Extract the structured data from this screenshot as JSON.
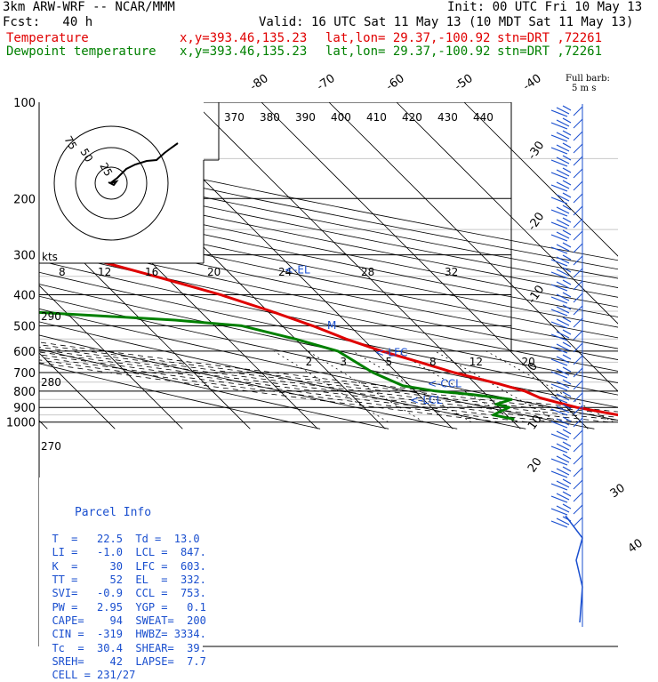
{
  "header": {
    "model": "3km ARW-WRF -- NCAR/MMM",
    "init": "Init: 00 UTC Fri 10 May 13",
    "fcst": "Fcst:   40 h",
    "valid": "Valid: 16 UTC Sat 11 May 13 (10 MDT Sat 11 May 13)",
    "temp_label": "Temperature",
    "dew_label": "Dewpoint temperature",
    "xy": "x,y=393.46,135.23",
    "latlon": "lat,lon= 29.37,-100.92",
    "stn": "stn=DRT ,72261"
  },
  "barb_legend": {
    "line1": "Full barb:",
    "line2": "5 m s"
  },
  "parcel": {
    "title": "Parcel Info",
    "rows": [
      "T  =   22.5  Td =  13.0",
      "LI =   -1.0  LCL =  847.",
      "K  =     30  LFC =  603.",
      "TT =     52  EL  =  332.",
      "SVI=   -0.9  CCL =  753.",
      "PW =   2.95  YGP =   0.1",
      "CAPE=    94  SWEAT=  200",
      "CIN =  -319  HWBZ= 3334.",
      "Tc  =  30.4  SHEAR=  39.",
      "SREH=    42  LAPSE=  7.7",
      "CELL = 231/27"
    ]
  },
  "chart_data": {
    "type": "line",
    "subtype": "skew-T log-p sounding",
    "pressure_ticks": [
      "100",
      "200",
      "300",
      "400",
      "500",
      "600",
      "700",
      "800",
      "900",
      "1000"
    ],
    "isotherm_labels": [
      "-80",
      "-70",
      "-60",
      "-50",
      "-40",
      "-30",
      "-20",
      "-10",
      "0",
      "10",
      "20",
      "30",
      "40"
    ],
    "theta_labels": [
      "370",
      "380",
      "390",
      "400",
      "410",
      "420",
      "430",
      "440",
      "290",
      "280",
      "270"
    ],
    "mixing_ratio_labels": [
      "2",
      "3",
      "5",
      "8",
      "12",
      "20"
    ],
    "hodo_ring_labels": [
      "75",
      "50",
      "25"
    ],
    "hodo_speed_labels": [
      "kts",
      "8",
      "12",
      "16",
      "20",
      "24",
      "28",
      "32"
    ],
    "levels": [
      {
        "name": "<-EL",
        "p": 332
      },
      {
        "name": "<-LFC",
        "p": 603
      },
      {
        "name": "<-CCL",
        "p": 753
      },
      {
        "name": "<-LCL",
        "p": 847
      }
    ],
    "freezing_marker": {
      "label": "M",
      "p": 496
    },
    "series": [
      {
        "name": "Temperature",
        "color": "#e00000",
        "points": [
          [
            980,
            30.5
          ],
          [
            950,
            26.5
          ],
          [
            900,
            21.5
          ],
          [
            870,
            19.5
          ],
          [
            840,
            17.5
          ],
          [
            800,
            16.2
          ],
          [
            760,
            13.5
          ],
          [
            700,
            8.5
          ],
          [
            650,
            5.0
          ],
          [
            600,
            1.0
          ],
          [
            550,
            -2.5
          ],
          [
            500,
            -5.5
          ],
          [
            450,
            -9.5
          ],
          [
            400,
            -14.5
          ],
          [
            350,
            -21.5
          ],
          [
            300,
            -30.0
          ],
          [
            250,
            -40.0
          ],
          [
            200,
            -50.5
          ],
          [
            170,
            -56.5
          ],
          [
            150,
            -60.0
          ],
          [
            120,
            -64.0
          ],
          [
            100,
            -64.5
          ]
        ]
      },
      {
        "name": "Dewpoint temperature",
        "color": "#008000",
        "points": [
          [
            980,
            10.5
          ],
          [
            950,
            8.0
          ],
          [
            900,
            11.5
          ],
          [
            880,
            10.0
          ],
          [
            850,
            13.0
          ],
          [
            820,
            8.0
          ],
          [
            800,
            3.0
          ],
          [
            770,
            -1.0
          ],
          [
            700,
            -3.5
          ],
          [
            600,
            -5.5
          ],
          [
            550,
            -10.0
          ],
          [
            500,
            -16.0
          ],
          [
            480,
            -25.0
          ],
          [
            440,
            -55.0
          ],
          [
            400,
            -75.0
          ],
          [
            390,
            -78.0
          ],
          [
            360,
            -76.0
          ],
          [
            300,
            -70.0
          ],
          [
            250,
            -68.0
          ],
          [
            200,
            -62.0
          ],
          [
            170,
            -65.0
          ],
          [
            140,
            -72.0
          ],
          [
            100,
            -88.0
          ]
        ]
      }
    ]
  }
}
